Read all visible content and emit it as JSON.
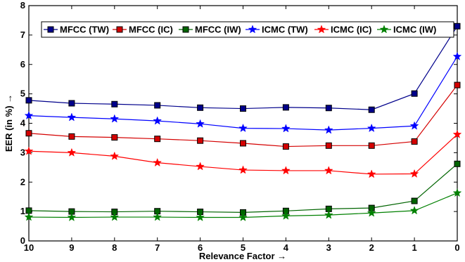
{
  "chart_data": {
    "type": "line",
    "xlabel": "Relevance Factor →",
    "ylabel": "EER (in %) →",
    "x": [
      10,
      9,
      8,
      7,
      6,
      5,
      4,
      3,
      2,
      1,
      0
    ],
    "x_tick_labels": [
      "10",
      "9",
      "8",
      "7",
      "6",
      "5",
      "4",
      "3",
      "2",
      "1",
      "0"
    ],
    "xlim": [
      10,
      0
    ],
    "ylim": [
      0,
      8
    ],
    "y_ticks": [
      0,
      1,
      2,
      3,
      4,
      5,
      6,
      7,
      8
    ],
    "grid": false,
    "legend_position": "top",
    "series": [
      {
        "name": "MFCC (TW)",
        "color": "#00008b",
        "marker": "square",
        "values": [
          4.78,
          4.68,
          4.65,
          4.61,
          4.53,
          4.5,
          4.54,
          4.52,
          4.46,
          5.01,
          7.3
        ]
      },
      {
        "name": "MFCC (IC)",
        "color": "#d40000",
        "marker": "square",
        "values": [
          3.66,
          3.55,
          3.52,
          3.47,
          3.41,
          3.32,
          3.21,
          3.24,
          3.24,
          3.38,
          5.3
        ]
      },
      {
        "name": "MFCC (IW)",
        "color": "#006400",
        "marker": "square",
        "values": [
          1.03,
          1.0,
          0.99,
          1.01,
          0.99,
          0.97,
          1.02,
          1.09,
          1.12,
          1.36,
          2.62
        ]
      },
      {
        "name": "ICMC (TW)",
        "color": "#0000ff",
        "marker": "star",
        "values": [
          4.26,
          4.2,
          4.15,
          4.08,
          3.98,
          3.83,
          3.82,
          3.77,
          3.83,
          3.91,
          6.27
        ]
      },
      {
        "name": "ICMC (IC)",
        "color": "#ff0000",
        "marker": "star",
        "values": [
          3.05,
          3.0,
          2.88,
          2.66,
          2.53,
          2.41,
          2.39,
          2.39,
          2.27,
          2.28,
          3.62
        ]
      },
      {
        "name": "ICMC (IW)",
        "color": "#008000",
        "marker": "star",
        "values": [
          0.81,
          0.8,
          0.81,
          0.81,
          0.8,
          0.8,
          0.85,
          0.88,
          0.95,
          1.03,
          1.63
        ]
      }
    ]
  }
}
